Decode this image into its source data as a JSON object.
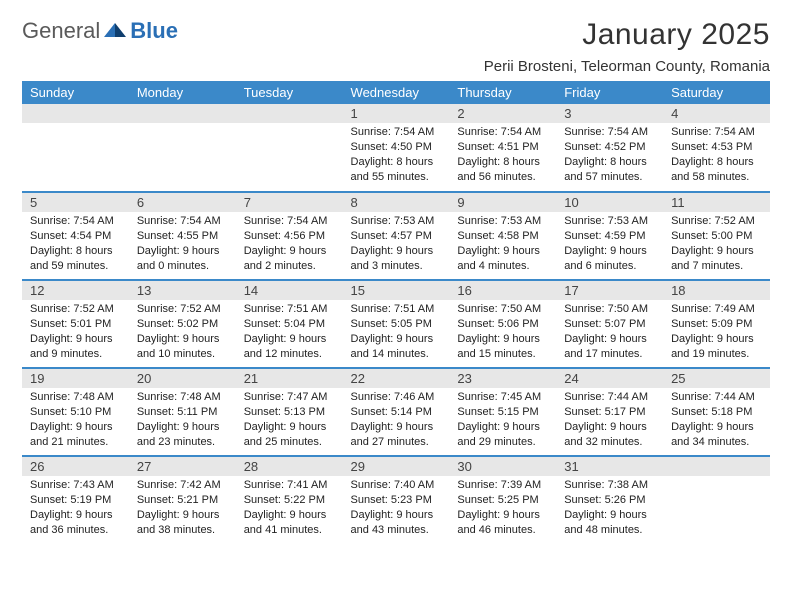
{
  "brand": {
    "word1": "General",
    "word2": "Blue"
  },
  "title": "January 2025",
  "location": "Perii Brosteni, Teleorman County, Romania",
  "colors": {
    "header_bg": "#3b89c9",
    "header_fg": "#ffffff",
    "daynum_bg": "#e7e7e7",
    "row_divider": "#3b89c9",
    "text": "#222222",
    "logo_gray": "#5a5a5a",
    "logo_blue": "#2a6fb5"
  },
  "weekdays": [
    "Sunday",
    "Monday",
    "Tuesday",
    "Wednesday",
    "Thursday",
    "Friday",
    "Saturday"
  ],
  "weeks": [
    [
      null,
      null,
      null,
      {
        "n": "1",
        "sr": "Sunrise: 7:54 AM",
        "ss": "Sunset: 4:50 PM",
        "d1": "Daylight: 8 hours",
        "d2": "and 55 minutes."
      },
      {
        "n": "2",
        "sr": "Sunrise: 7:54 AM",
        "ss": "Sunset: 4:51 PM",
        "d1": "Daylight: 8 hours",
        "d2": "and 56 minutes."
      },
      {
        "n": "3",
        "sr": "Sunrise: 7:54 AM",
        "ss": "Sunset: 4:52 PM",
        "d1": "Daylight: 8 hours",
        "d2": "and 57 minutes."
      },
      {
        "n": "4",
        "sr": "Sunrise: 7:54 AM",
        "ss": "Sunset: 4:53 PM",
        "d1": "Daylight: 8 hours",
        "d2": "and 58 minutes."
      }
    ],
    [
      {
        "n": "5",
        "sr": "Sunrise: 7:54 AM",
        "ss": "Sunset: 4:54 PM",
        "d1": "Daylight: 8 hours",
        "d2": "and 59 minutes."
      },
      {
        "n": "6",
        "sr": "Sunrise: 7:54 AM",
        "ss": "Sunset: 4:55 PM",
        "d1": "Daylight: 9 hours",
        "d2": "and 0 minutes."
      },
      {
        "n": "7",
        "sr": "Sunrise: 7:54 AM",
        "ss": "Sunset: 4:56 PM",
        "d1": "Daylight: 9 hours",
        "d2": "and 2 minutes."
      },
      {
        "n": "8",
        "sr": "Sunrise: 7:53 AM",
        "ss": "Sunset: 4:57 PM",
        "d1": "Daylight: 9 hours",
        "d2": "and 3 minutes."
      },
      {
        "n": "9",
        "sr": "Sunrise: 7:53 AM",
        "ss": "Sunset: 4:58 PM",
        "d1": "Daylight: 9 hours",
        "d2": "and 4 minutes."
      },
      {
        "n": "10",
        "sr": "Sunrise: 7:53 AM",
        "ss": "Sunset: 4:59 PM",
        "d1": "Daylight: 9 hours",
        "d2": "and 6 minutes."
      },
      {
        "n": "11",
        "sr": "Sunrise: 7:52 AM",
        "ss": "Sunset: 5:00 PM",
        "d1": "Daylight: 9 hours",
        "d2": "and 7 minutes."
      }
    ],
    [
      {
        "n": "12",
        "sr": "Sunrise: 7:52 AM",
        "ss": "Sunset: 5:01 PM",
        "d1": "Daylight: 9 hours",
        "d2": "and 9 minutes."
      },
      {
        "n": "13",
        "sr": "Sunrise: 7:52 AM",
        "ss": "Sunset: 5:02 PM",
        "d1": "Daylight: 9 hours",
        "d2": "and 10 minutes."
      },
      {
        "n": "14",
        "sr": "Sunrise: 7:51 AM",
        "ss": "Sunset: 5:04 PM",
        "d1": "Daylight: 9 hours",
        "d2": "and 12 minutes."
      },
      {
        "n": "15",
        "sr": "Sunrise: 7:51 AM",
        "ss": "Sunset: 5:05 PM",
        "d1": "Daylight: 9 hours",
        "d2": "and 14 minutes."
      },
      {
        "n": "16",
        "sr": "Sunrise: 7:50 AM",
        "ss": "Sunset: 5:06 PM",
        "d1": "Daylight: 9 hours",
        "d2": "and 15 minutes."
      },
      {
        "n": "17",
        "sr": "Sunrise: 7:50 AM",
        "ss": "Sunset: 5:07 PM",
        "d1": "Daylight: 9 hours",
        "d2": "and 17 minutes."
      },
      {
        "n": "18",
        "sr": "Sunrise: 7:49 AM",
        "ss": "Sunset: 5:09 PM",
        "d1": "Daylight: 9 hours",
        "d2": "and 19 minutes."
      }
    ],
    [
      {
        "n": "19",
        "sr": "Sunrise: 7:48 AM",
        "ss": "Sunset: 5:10 PM",
        "d1": "Daylight: 9 hours",
        "d2": "and 21 minutes."
      },
      {
        "n": "20",
        "sr": "Sunrise: 7:48 AM",
        "ss": "Sunset: 5:11 PM",
        "d1": "Daylight: 9 hours",
        "d2": "and 23 minutes."
      },
      {
        "n": "21",
        "sr": "Sunrise: 7:47 AM",
        "ss": "Sunset: 5:13 PM",
        "d1": "Daylight: 9 hours",
        "d2": "and 25 minutes."
      },
      {
        "n": "22",
        "sr": "Sunrise: 7:46 AM",
        "ss": "Sunset: 5:14 PM",
        "d1": "Daylight: 9 hours",
        "d2": "and 27 minutes."
      },
      {
        "n": "23",
        "sr": "Sunrise: 7:45 AM",
        "ss": "Sunset: 5:15 PM",
        "d1": "Daylight: 9 hours",
        "d2": "and 29 minutes."
      },
      {
        "n": "24",
        "sr": "Sunrise: 7:44 AM",
        "ss": "Sunset: 5:17 PM",
        "d1": "Daylight: 9 hours",
        "d2": "and 32 minutes."
      },
      {
        "n": "25",
        "sr": "Sunrise: 7:44 AM",
        "ss": "Sunset: 5:18 PM",
        "d1": "Daylight: 9 hours",
        "d2": "and 34 minutes."
      }
    ],
    [
      {
        "n": "26",
        "sr": "Sunrise: 7:43 AM",
        "ss": "Sunset: 5:19 PM",
        "d1": "Daylight: 9 hours",
        "d2": "and 36 minutes."
      },
      {
        "n": "27",
        "sr": "Sunrise: 7:42 AM",
        "ss": "Sunset: 5:21 PM",
        "d1": "Daylight: 9 hours",
        "d2": "and 38 minutes."
      },
      {
        "n": "28",
        "sr": "Sunrise: 7:41 AM",
        "ss": "Sunset: 5:22 PM",
        "d1": "Daylight: 9 hours",
        "d2": "and 41 minutes."
      },
      {
        "n": "29",
        "sr": "Sunrise: 7:40 AM",
        "ss": "Sunset: 5:23 PM",
        "d1": "Daylight: 9 hours",
        "d2": "and 43 minutes."
      },
      {
        "n": "30",
        "sr": "Sunrise: 7:39 AM",
        "ss": "Sunset: 5:25 PM",
        "d1": "Daylight: 9 hours",
        "d2": "and 46 minutes."
      },
      {
        "n": "31",
        "sr": "Sunrise: 7:38 AM",
        "ss": "Sunset: 5:26 PM",
        "d1": "Daylight: 9 hours",
        "d2": "and 48 minutes."
      },
      null
    ]
  ]
}
